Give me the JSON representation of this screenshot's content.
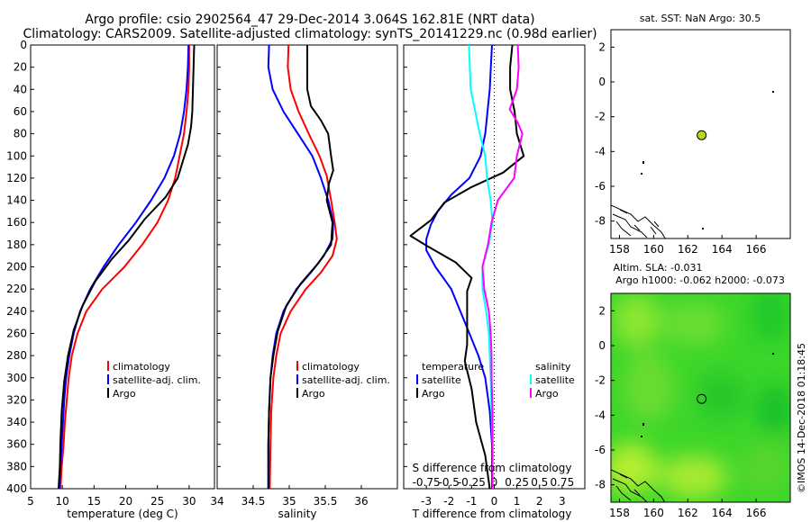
{
  "title": {
    "line1": "Argo profile: csio 2902564_47 29-Dec-2014 3.064S 162.81E (NRT data)",
    "line2": "Climatology: CARS2009. Satellite-adjusted climatology: synTS_20141229.nc (0.98d earlier)"
  },
  "credit": "©IMOS 14-Dec-2018 01:18:45",
  "colors": {
    "clim": "#ff0000",
    "sat": "#0000ff",
    "argo": "#000000",
    "sal_sat": "#00ffff",
    "sal_clim": "#ff00ff",
    "land": "#000000",
    "float_fill": "#bcd51a"
  },
  "depth_axis": {
    "min": 0,
    "max": 400,
    "ticks": [
      0,
      20,
      40,
      60,
      80,
      100,
      120,
      140,
      160,
      180,
      200,
      220,
      240,
      260,
      280,
      300,
      320,
      340,
      360,
      380,
      400
    ]
  },
  "chart_data": [
    {
      "id": "temperature",
      "type": "line",
      "xlabel": "temperature (deg C)",
      "xlim": [
        5,
        34
      ],
      "xticks": [
        5,
        10,
        15,
        20,
        25,
        30
      ],
      "ylim": [
        400,
        0
      ],
      "legend": {
        "position": "bottom-right",
        "entries": [
          "climatology",
          "satellite-adj. clim.",
          "Argo"
        ]
      },
      "series": [
        {
          "name": "climatology",
          "color": "#ff0000",
          "points": [
            [
              30.0,
              0
            ],
            [
              30.0,
              20
            ],
            [
              29.9,
              40
            ],
            [
              29.6,
              60
            ],
            [
              29.2,
              80
            ],
            [
              28.5,
              100
            ],
            [
              27.8,
              120
            ],
            [
              26.7,
              140
            ],
            [
              25.0,
              160
            ],
            [
              22.6,
              180
            ],
            [
              19.8,
              200
            ],
            [
              16.3,
              220
            ],
            [
              13.8,
              240
            ],
            [
              12.4,
              260
            ],
            [
              11.5,
              280
            ],
            [
              11.0,
              300
            ],
            [
              10.7,
              320
            ],
            [
              10.4,
              340
            ],
            [
              10.2,
              360
            ],
            [
              9.9,
              380
            ],
            [
              9.7,
              400
            ]
          ]
        },
        {
          "name": "satellite-adj. clim.",
          "color": "#0000ff",
          "points": [
            [
              29.9,
              0
            ],
            [
              29.8,
              20
            ],
            [
              29.6,
              40
            ],
            [
              29.2,
              60
            ],
            [
              28.6,
              80
            ],
            [
              27.6,
              100
            ],
            [
              26.1,
              120
            ],
            [
              24.0,
              140
            ],
            [
              21.6,
              160
            ],
            [
              18.9,
              180
            ],
            [
              16.5,
              200
            ],
            [
              14.4,
              220
            ],
            [
              12.8,
              240
            ],
            [
              11.8,
              260
            ],
            [
              11.1,
              280
            ],
            [
              10.6,
              300
            ],
            [
              10.3,
              320
            ],
            [
              10.1,
              340
            ],
            [
              9.9,
              360
            ],
            [
              9.7,
              380
            ],
            [
              9.5,
              400
            ]
          ]
        },
        {
          "name": "Argo",
          "color": "#000000",
          "points": [
            [
              30.8,
              0
            ],
            [
              30.7,
              20
            ],
            [
              30.6,
              40
            ],
            [
              30.5,
              60
            ],
            [
              30.3,
              74
            ],
            [
              29.8,
              90
            ],
            [
              29.0,
              105
            ],
            [
              28.2,
              120
            ],
            [
              26.3,
              137
            ],
            [
              23.0,
              157
            ],
            [
              20.5,
              176
            ],
            [
              17.8,
              193
            ],
            [
              15.2,
              213
            ],
            [
              13.2,
              235
            ],
            [
              11.8,
              257
            ],
            [
              10.9,
              280
            ],
            [
              10.3,
              303
            ],
            [
              9.9,
              330
            ],
            [
              9.7,
              357
            ],
            [
              9.6,
              380
            ],
            [
              9.4,
              400
            ]
          ]
        }
      ]
    },
    {
      "id": "salinity",
      "type": "line",
      "xlabel": "salinity",
      "xlim": [
        34,
        36.5
      ],
      "xticks": [
        34,
        34.5,
        35,
        35.5,
        36
      ],
      "ylim": [
        400,
        0
      ],
      "legend": {
        "position": "bottom-right",
        "entries": [
          "climatology",
          "satellite-adj. clim.",
          "Argo"
        ]
      },
      "series": [
        {
          "name": "climatology",
          "color": "#ff0000",
          "points": [
            [
              34.99,
              0
            ],
            [
              34.98,
              20
            ],
            [
              35.02,
              40
            ],
            [
              35.13,
              60
            ],
            [
              35.27,
              80
            ],
            [
              35.42,
              100
            ],
            [
              35.52,
              118
            ],
            [
              35.58,
              140
            ],
            [
              35.63,
              160
            ],
            [
              35.66,
              175
            ],
            [
              35.6,
              190
            ],
            [
              35.44,
              205
            ],
            [
              35.23,
              220
            ],
            [
              35.02,
              240
            ],
            [
              34.88,
              260
            ],
            [
              34.82,
              280
            ],
            [
              34.78,
              300
            ],
            [
              34.75,
              330
            ],
            [
              34.74,
              360
            ],
            [
              34.73,
              400
            ]
          ]
        },
        {
          "name": "satellite-adj. clim.",
          "color": "#0000ff",
          "points": [
            [
              34.72,
              0
            ],
            [
              34.71,
              20
            ],
            [
              34.77,
              40
            ],
            [
              34.92,
              60
            ],
            [
              35.12,
              80
            ],
            [
              35.32,
              100
            ],
            [
              35.44,
              120
            ],
            [
              35.54,
              140
            ],
            [
              35.61,
              160
            ],
            [
              35.6,
              175
            ],
            [
              35.48,
              190
            ],
            [
              35.3,
              205
            ],
            [
              35.1,
              220
            ],
            [
              34.92,
              240
            ],
            [
              34.82,
              260
            ],
            [
              34.77,
              280
            ],
            [
              34.74,
              300
            ],
            [
              34.72,
              330
            ],
            [
              34.71,
              360
            ],
            [
              34.71,
              400
            ]
          ]
        },
        {
          "name": "Argo",
          "color": "#000000",
          "points": [
            [
              35.25,
              0
            ],
            [
              35.25,
              20
            ],
            [
              35.25,
              40
            ],
            [
              35.3,
              55
            ],
            [
              35.44,
              68
            ],
            [
              35.54,
              80
            ],
            [
              35.58,
              100
            ],
            [
              35.61,
              113
            ],
            [
              35.55,
              125
            ],
            [
              35.52,
              140
            ],
            [
              35.6,
              160
            ],
            [
              35.58,
              180
            ],
            [
              35.4,
              197
            ],
            [
              35.16,
              215
            ],
            [
              34.96,
              235
            ],
            [
              34.84,
              258
            ],
            [
              34.78,
              280
            ],
            [
              34.74,
              300
            ],
            [
              34.72,
              330
            ],
            [
              34.71,
              360
            ],
            [
              34.71,
              400
            ]
          ]
        }
      ]
    },
    {
      "id": "difference",
      "type": "line",
      "xlabel": "T difference from climatology",
      "xlabel_top": "S difference from climatology",
      "xlim": [
        -4,
        4
      ],
      "xticks": [
        -3,
        -2,
        -1,
        0,
        1,
        2,
        3
      ],
      "xlim_top": [
        -1,
        1
      ],
      "xticks_top": [
        -0.75,
        -0.5,
        -0.25,
        0,
        0.25,
        0.5,
        0.75
      ],
      "xticklabels_top": [
        "-0.75",
        "-0.5",
        "-0.25",
        "0",
        "0.25",
        "0.5",
        "0.75"
      ],
      "ylim": [
        400,
        0
      ],
      "legend_left": {
        "heading": "temperature",
        "entries": [
          "satellite",
          "Argo"
        ]
      },
      "legend_right": {
        "heading": "salinity",
        "entries": [
          "satellite",
          "Argo"
        ]
      },
      "series": [
        {
          "name": "temperature satellite",
          "axis": "T",
          "color": "#0000ff",
          "points": [
            [
              -0.1,
              0
            ],
            [
              -0.15,
              20
            ],
            [
              -0.2,
              40
            ],
            [
              -0.3,
              60
            ],
            [
              -0.4,
              80
            ],
            [
              -0.6,
              100
            ],
            [
              -1.1,
              120
            ],
            [
              -1.9,
              135
            ],
            [
              -2.5,
              150
            ],
            [
              -2.8,
              162
            ],
            [
              -3.0,
              175
            ],
            [
              -3.0,
              185
            ],
            [
              -2.6,
              200
            ],
            [
              -1.9,
              220
            ],
            [
              -1.5,
              240
            ],
            [
              -1.1,
              260
            ],
            [
              -0.7,
              280
            ],
            [
              -0.4,
              300
            ],
            [
              -0.2,
              330
            ],
            [
              -0.1,
              360
            ],
            [
              -0.1,
              400
            ]
          ]
        },
        {
          "name": "temperature Argo",
          "axis": "T",
          "color": "#000000",
          "points": [
            [
              0.8,
              0
            ],
            [
              0.7,
              20
            ],
            [
              0.7,
              40
            ],
            [
              0.9,
              60
            ],
            [
              1.0,
              80
            ],
            [
              1.3,
              100
            ],
            [
              0.4,
              115
            ],
            [
              -1.0,
              128
            ],
            [
              -2.2,
              142
            ],
            [
              -2.8,
              158
            ],
            [
              -3.7,
              172
            ],
            [
              -2.9,
              182
            ],
            [
              -1.7,
              196
            ],
            [
              -1.0,
              210
            ],
            [
              -1.2,
              222
            ],
            [
              -1.2,
              240
            ],
            [
              -1.2,
              270
            ],
            [
              -1.3,
              285
            ],
            [
              -1.0,
              310
            ],
            [
              -0.8,
              340
            ],
            [
              -0.4,
              370
            ],
            [
              -0.2,
              400
            ]
          ]
        },
        {
          "name": "salinity satellite",
          "axis": "S",
          "color": "#00ffff",
          "points": [
            [
              -0.28,
              0
            ],
            [
              -0.27,
              20
            ],
            [
              -0.26,
              40
            ],
            [
              -0.21,
              60
            ],
            [
              -0.16,
              80
            ],
            [
              -0.1,
              100
            ],
            [
              -0.08,
              120
            ],
            [
              -0.04,
              140
            ],
            [
              -0.02,
              160
            ],
            [
              -0.06,
              180
            ],
            [
              -0.13,
              200
            ],
            [
              -0.13,
              220
            ],
            [
              -0.09,
              240
            ],
            [
              -0.06,
              260
            ],
            [
              -0.05,
              280
            ],
            [
              -0.04,
              300
            ],
            [
              -0.03,
              330
            ],
            [
              -0.02,
              360
            ],
            [
              -0.02,
              400
            ]
          ]
        },
        {
          "name": "salinity Argo",
          "axis": "S",
          "color": "#ff00ff",
          "points": [
            [
              0.26,
              0
            ],
            [
              0.27,
              20
            ],
            [
              0.25,
              40
            ],
            [
              0.17,
              58
            ],
            [
              0.26,
              70
            ],
            [
              0.31,
              80
            ],
            [
              0.25,
              100
            ],
            [
              0.22,
              120
            ],
            [
              0.04,
              140
            ],
            [
              -0.03,
              160
            ],
            [
              -0.07,
              180
            ],
            [
              -0.13,
              200
            ],
            [
              -0.11,
              220
            ],
            [
              -0.06,
              240
            ],
            [
              -0.04,
              260
            ],
            [
              -0.03,
              280
            ],
            [
              -0.03,
              300
            ],
            [
              -0.02,
              330
            ],
            [
              -0.02,
              360
            ],
            [
              -0.02,
              400
            ]
          ]
        }
      ]
    }
  ],
  "maps": [
    {
      "id": "sst-map",
      "title": "sat. SST: NaN Argo: 30.5",
      "xlim": [
        157.5,
        168
      ],
      "ylim": [
        -9,
        3
      ],
      "xticks": [
        158,
        160,
        162,
        164,
        166
      ],
      "yticks": [
        2,
        0,
        -2,
        -4,
        -6,
        -8
      ],
      "float": {
        "lon": 162.81,
        "lat": -3.064
      }
    },
    {
      "id": "sla-map",
      "title_line1": "Altim. SLA: -0.031",
      "title_line2": "Argo h1000: -0.062 h2000: -0.073",
      "xlim": [
        157.5,
        168
      ],
      "ylim": [
        -9,
        3
      ],
      "xticks": [
        158,
        160,
        162,
        164,
        166
      ],
      "yticks": [
        2,
        0,
        -2,
        -4,
        -6,
        -8
      ],
      "float": {
        "lon": 162.81,
        "lat": -3.064
      }
    }
  ]
}
